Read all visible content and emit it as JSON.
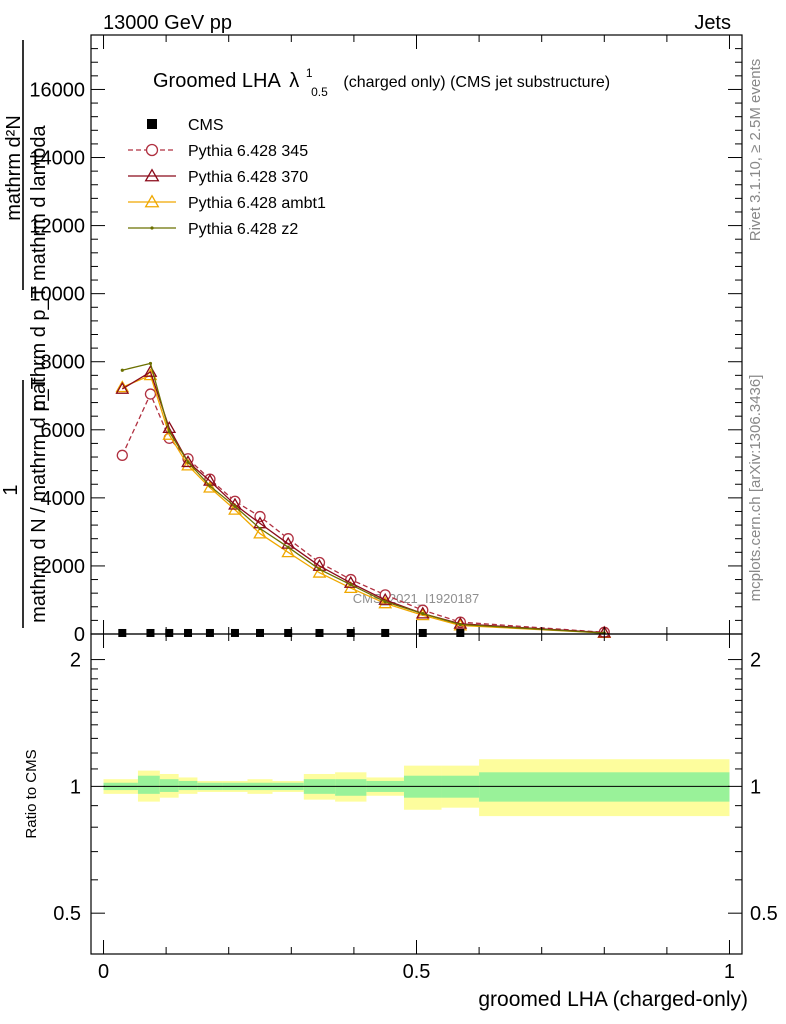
{
  "header": {
    "left": "13000 GeV pp",
    "right": "Jets"
  },
  "title": {
    "main": "Groomed LHA",
    "symbol": "λ",
    "sup": "1",
    "sub": "0.5",
    "suffix": "(charged only) (CMS jet substructure)"
  },
  "side_labels": {
    "rivet": "Rivet 3.1.10, ≥ 2.5M events",
    "mcplots": "mcplots.cern.ch [arXiv:1306.3436]"
  },
  "watermark": "CMS_2021_I1920187",
  "ylabel_main": {
    "frac1_num": "mathrm d²N",
    "frac1_den": "mathrm d p_T mathrm d lambda",
    "one": "1",
    "frac2_den": "mathrm d N / mathrm d p_T"
  },
  "ylabel_ratio": "Ratio to CMS",
  "xlabel": "groomed LHA (charged-only)",
  "legend": [
    {
      "name": "CMS",
      "color": "#000000",
      "marker": "square",
      "dash": ""
    },
    {
      "name": "Pythia 6.428 345",
      "color": "#b03040",
      "marker": "circle",
      "dash": "5,3"
    },
    {
      "name": "Pythia 6.428 370",
      "color": "#8b0a1a",
      "marker": "triangle",
      "dash": ""
    },
    {
      "name": "Pythia 6.428 ambt1",
      "color": "#f0a800",
      "marker": "triangle",
      "dash": ""
    },
    {
      "name": "Pythia 6.428 z2",
      "color": "#6b7000",
      "marker": "dot",
      "dash": ""
    }
  ],
  "chart_data": [
    {
      "type": "line",
      "panel": "main",
      "xlim": [
        -0.02,
        1.02
      ],
      "ylim": [
        0,
        17600
      ],
      "yticks": [
        0,
        2000,
        4000,
        6000,
        8000,
        10000,
        12000,
        14000,
        16000
      ],
      "ytick_labels": [
        "0",
        "2000",
        "4000",
        "6000",
        "8000",
        "10000",
        "12000",
        "14000",
        "16000"
      ],
      "series": [
        {
          "name": "CMS",
          "x": [
            0.03,
            0.075,
            0.105,
            0.135,
            0.17,
            0.21,
            0.25,
            0.295,
            0.345,
            0.395,
            0.45,
            0.51,
            0.57
          ],
          "y": [
            30,
            30,
            30,
            30,
            30,
            30,
            30,
            30,
            30,
            30,
            30,
            30,
            30
          ]
        },
        {
          "name": "Pythia 6.428 345",
          "x": [
            0.03,
            0.075,
            0.105,
            0.135,
            0.17,
            0.21,
            0.25,
            0.295,
            0.345,
            0.395,
            0.45,
            0.51,
            0.57,
            0.8
          ],
          "y": [
            5250,
            7050,
            5750,
            5150,
            4550,
            3900,
            3450,
            2800,
            2100,
            1600,
            1150,
            700,
            350,
            50
          ]
        },
        {
          "name": "Pythia 6.428 370",
          "x": [
            0.03,
            0.075,
            0.105,
            0.135,
            0.17,
            0.21,
            0.25,
            0.295,
            0.345,
            0.395,
            0.45,
            0.51,
            0.57,
            0.8
          ],
          "y": [
            7200,
            7700,
            6050,
            5050,
            4500,
            3800,
            3250,
            2650,
            2000,
            1500,
            1000,
            600,
            300,
            40
          ]
        },
        {
          "name": "Pythia 6.428 ambt1",
          "x": [
            0.03,
            0.075,
            0.105,
            0.135,
            0.17,
            0.21,
            0.25,
            0.295,
            0.345,
            0.395,
            0.45,
            0.51,
            0.57,
            0.8
          ],
          "y": [
            7250,
            7600,
            5850,
            4950,
            4300,
            3650,
            2950,
            2400,
            1800,
            1350,
            900,
            550,
            250,
            30
          ]
        },
        {
          "name": "Pythia 6.428 z2",
          "x": [
            0.03,
            0.075,
            0.105,
            0.135,
            0.17,
            0.21,
            0.25,
            0.295,
            0.345,
            0.395,
            0.45,
            0.51,
            0.57,
            0.8
          ],
          "y": [
            7750,
            7950,
            5950,
            5050,
            4350,
            3750,
            3100,
            2550,
            1900,
            1450,
            950,
            600,
            280,
            30
          ]
        }
      ]
    },
    {
      "type": "area",
      "panel": "ratio",
      "xlim": [
        -0.02,
        1.02
      ],
      "ylim": [
        0.4,
        2.3
      ],
      "scale": "log",
      "yticks": [
        0.5,
        1,
        2
      ],
      "ytick_labels": [
        "0.5",
        "1",
        "2"
      ],
      "xticks": [
        0,
        0.5,
        1
      ],
      "xtick_labels": [
        "0",
        "0.5",
        "1"
      ],
      "reference": 1,
      "bands": [
        {
          "x0": 0.0,
          "x1": 0.055,
          "inner": [
            0.98,
            1.02
          ],
          "outer": [
            0.96,
            1.04
          ]
        },
        {
          "x0": 0.055,
          "x1": 0.09,
          "inner": [
            0.96,
            1.06
          ],
          "outer": [
            0.92,
            1.09
          ]
        },
        {
          "x0": 0.09,
          "x1": 0.12,
          "inner": [
            0.97,
            1.04
          ],
          "outer": [
            0.94,
            1.07
          ]
        },
        {
          "x0": 0.12,
          "x1": 0.15,
          "inner": [
            0.98,
            1.03
          ],
          "outer": [
            0.96,
            1.05
          ]
        },
        {
          "x0": 0.15,
          "x1": 0.19,
          "inner": [
            0.98,
            1.02
          ],
          "outer": [
            0.97,
            1.03
          ]
        },
        {
          "x0": 0.19,
          "x1": 0.23,
          "inner": [
            0.98,
            1.02
          ],
          "outer": [
            0.97,
            1.03
          ]
        },
        {
          "x0": 0.23,
          "x1": 0.27,
          "inner": [
            0.98,
            1.02
          ],
          "outer": [
            0.96,
            1.04
          ]
        },
        {
          "x0": 0.27,
          "x1": 0.32,
          "inner": [
            0.98,
            1.02
          ],
          "outer": [
            0.97,
            1.03
          ]
        },
        {
          "x0": 0.32,
          "x1": 0.37,
          "inner": [
            0.96,
            1.04
          ],
          "outer": [
            0.93,
            1.07
          ]
        },
        {
          "x0": 0.37,
          "x1": 0.42,
          "inner": [
            0.95,
            1.04
          ],
          "outer": [
            0.92,
            1.08
          ]
        },
        {
          "x0": 0.42,
          "x1": 0.48,
          "inner": [
            0.97,
            1.03
          ],
          "outer": [
            0.95,
            1.05
          ]
        },
        {
          "x0": 0.48,
          "x1": 0.54,
          "inner": [
            0.94,
            1.06
          ],
          "outer": [
            0.88,
            1.12
          ]
        },
        {
          "x0": 0.54,
          "x1": 0.6,
          "inner": [
            0.94,
            1.06
          ],
          "outer": [
            0.89,
            1.12
          ]
        },
        {
          "x0": 0.6,
          "x1": 1.0,
          "inner": [
            0.92,
            1.08
          ],
          "outer": [
            0.85,
            1.16
          ]
        }
      ]
    }
  ],
  "colors": {
    "band_inner": "#99f299",
    "band_outer": "#fdfd9d",
    "frame": "#000000",
    "side_text": "#888888",
    "watermark": "#8f8f8f"
  }
}
